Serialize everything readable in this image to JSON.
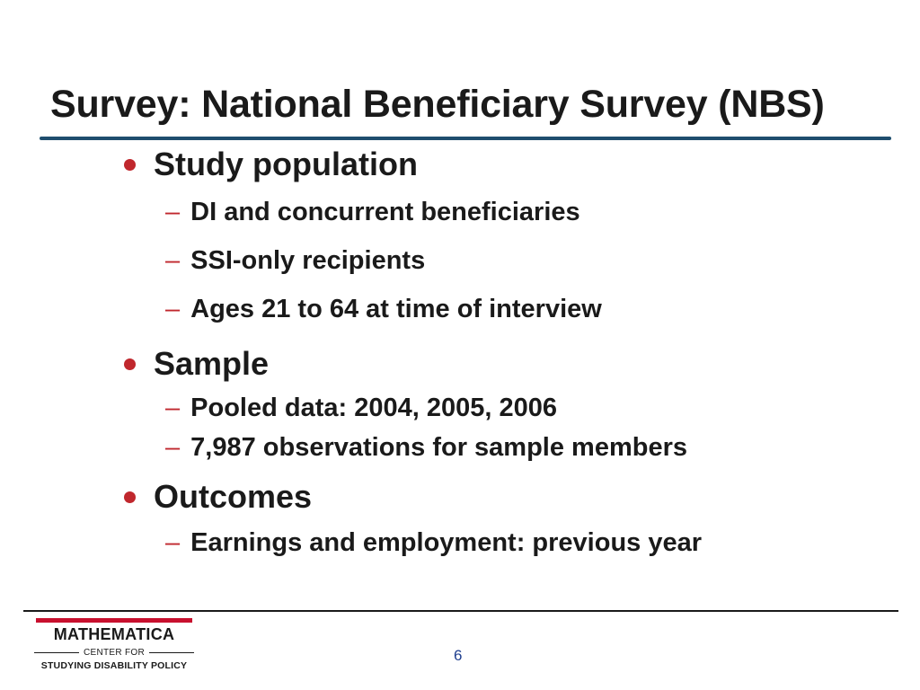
{
  "slide": {
    "title": "Survey: National Beneficiary Survey (NBS)",
    "bullets": [
      {
        "text": "Study population",
        "subitems": [
          "DI and concurrent beneficiaries",
          "SSI-only recipients",
          "Ages 21 to 64 at time of interview"
        ]
      },
      {
        "text": "Sample",
        "subitems": [
          "Pooled data:  2004, 2005, 2006",
          "7,987 observations for sample members"
        ]
      },
      {
        "text": "Outcomes",
        "subitems": [
          "Earnings and employment: previous year"
        ]
      }
    ],
    "dash_glyph": "–",
    "page_number": "6"
  },
  "logo": {
    "name": "MATHEMATICA",
    "middle": "CENTER FOR",
    "bottom": "STUDYING DISABILITY POLICY"
  },
  "colors": {
    "title_rule": "#1f4e6e",
    "bullet_accent": "#c0272d",
    "logo_bar": "#c8102e",
    "page_number": "#1f3f8f"
  }
}
